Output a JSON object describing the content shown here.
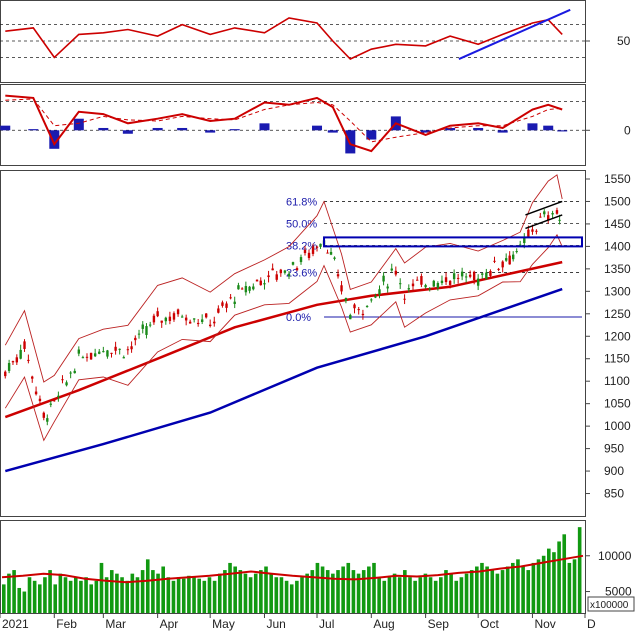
{
  "colors": {
    "up": "#1a8a1a",
    "down": "#cc0000",
    "ma_short": "#cc0000",
    "ma_long": "#0000b0",
    "bollinger": "#bb2222",
    "fib": "#1a1aaa",
    "rsi": "#cc0000",
    "rsi_trend": "#1a1ae0",
    "macd": "#cc0000",
    "histogram": "#1a1ab0",
    "volume_bar": "#119911",
    "volume_ma": "#cc0000",
    "grid": "#333333"
  },
  "chart_data": [
    {
      "type": "line",
      "panel": "rsi",
      "y_ticks": [
        "50"
      ],
      "ylim": [
        0,
        100
      ],
      "x": [
        "2021-01-04",
        "2021-01-20",
        "2021-02-01",
        "2021-02-15",
        "2021-03-01",
        "2021-03-15",
        "2021-04-01",
        "2021-04-15",
        "2021-05-01",
        "2021-05-15",
        "2021-06-01",
        "2021-06-15",
        "2021-07-01",
        "2021-07-10",
        "2021-07-20",
        "2021-08-01",
        "2021-08-15",
        "2021-09-01",
        "2021-09-15",
        "2021-10-01",
        "2021-10-15",
        "2021-11-01",
        "2021-11-10",
        "2021-11-18"
      ],
      "series": [
        {
          "values": [
            62,
            66,
            30,
            58,
            60,
            64,
            56,
            70,
            58,
            66,
            60,
            78,
            72,
            50,
            28,
            40,
            46,
            44,
            56,
            46,
            58,
            72,
            76,
            58
          ]
        }
      ],
      "trendline": {
        "x": [
          "2021-09-20",
          "2021-11-18"
        ],
        "y": [
          28,
          88
        ]
      },
      "reference_levels": [
        30,
        50,
        70
      ]
    },
    {
      "type": "line",
      "panel": "macd",
      "y_ticks": [
        "0"
      ],
      "ylim": [
        -30,
        40
      ],
      "x": [
        "2021-01-04",
        "2021-01-20",
        "2021-02-01",
        "2021-02-15",
        "2021-03-01",
        "2021-03-15",
        "2021-04-01",
        "2021-04-15",
        "2021-05-01",
        "2021-05-15",
        "2021-06-01",
        "2021-06-15",
        "2021-07-01",
        "2021-07-10",
        "2021-07-20",
        "2021-08-01",
        "2021-08-15",
        "2021-09-01",
        "2021-09-15",
        "2021-10-01",
        "2021-10-15",
        "2021-11-01",
        "2021-11-10",
        "2021-11-18"
      ],
      "series": [
        {
          "values": [
            30,
            28,
            -12,
            16,
            14,
            6,
            10,
            14,
            8,
            10,
            24,
            22,
            28,
            20,
            -12,
            -18,
            6,
            -4,
            4,
            6,
            2,
            18,
            22,
            18
          ]
        },
        {
          "values": [
            26,
            27,
            4,
            6,
            12,
            9,
            8,
            12,
            10,
            9,
            18,
            22,
            24,
            22,
            8,
            -10,
            -6,
            -2,
            2,
            4,
            4,
            12,
            18,
            19
          ]
        }
      ],
      "histogram": [
        4,
        1,
        -16,
        10,
        2,
        -3,
        2,
        2,
        -2,
        1,
        6,
        0,
        4,
        -2,
        -20,
        -8,
        12,
        -2,
        2,
        2,
        -2,
        6,
        4,
        -1
      ]
    },
    {
      "type": "candlestick",
      "panel": "price",
      "y_ticks": [
        "850",
        "900",
        "950",
        "1000",
        "1050",
        "1100",
        "1150",
        "1200",
        "1250",
        "1300",
        "1350",
        "1400",
        "1450",
        "1500",
        "1550"
      ],
      "ylim": [
        800,
        1570
      ],
      "x_ticks": [
        "2021",
        "Feb",
        "Mar",
        "Apr",
        "May",
        "Jun",
        "Jul",
        "Aug",
        "Sep",
        "Oct",
        "Nov",
        "D"
      ],
      "fibonacci": [
        {
          "label": "61.8%",
          "value": 1500
        },
        {
          "label": "50.0%",
          "value": 1451
        },
        {
          "label": "38.2%",
          "value": 1402
        },
        {
          "label": "23.6%",
          "value": 1342
        },
        {
          "label": "0.0%",
          "value": 1243
        }
      ],
      "close_path": {
        "x": [
          "2021-01-04",
          "2021-01-15",
          "2021-01-26",
          "2021-02-01",
          "2021-02-15",
          "2021-03-01",
          "2021-03-15",
          "2021-04-01",
          "2021-04-15",
          "2021-05-01",
          "2021-05-15",
          "2021-06-01",
          "2021-06-15",
          "2021-07-01",
          "2021-07-05",
          "2021-07-15",
          "2021-07-20",
          "2021-08-01",
          "2021-08-15",
          "2021-08-20",
          "2021-09-01",
          "2021-09-15",
          "2021-10-01",
          "2021-10-15",
          "2021-10-25",
          "2021-11-01",
          "2021-11-10",
          "2021-11-15",
          "2021-11-18"
        ],
        "y": [
          1120,
          1180,
          1020,
          1050,
          1150,
          1175,
          1170,
          1240,
          1250,
          1230,
          1290,
          1330,
          1350,
          1400,
          1420,
          1310,
          1250,
          1280,
          1350,
          1300,
          1320,
          1330,
          1330,
          1370,
          1390,
          1440,
          1470,
          1480,
          1440
        ]
      },
      "ma_short": {
        "x": [
          "2021-01-04",
          "2021-02-15",
          "2021-04-01",
          "2021-05-15",
          "2021-07-01",
          "2021-08-01",
          "2021-09-15",
          "2021-11-18"
        ],
        "y": [
          1020,
          1080,
          1150,
          1220,
          1270,
          1290,
          1310,
          1365
        ]
      },
      "ma_long": {
        "x": [
          "2021-01-04",
          "2021-03-01",
          "2021-05-01",
          "2021-07-01",
          "2021-09-01",
          "2021-11-18"
        ],
        "y": [
          900,
          960,
          1030,
          1130,
          1200,
          1305
        ]
      },
      "resistance_zone": [
        1400,
        1420
      ],
      "channel": {
        "x": [
          "2021-10-28",
          "2021-11-18"
        ],
        "upper": [
          1470,
          1500
        ],
        "lower": [
          1440,
          1470
        ]
      }
    },
    {
      "type": "bar",
      "panel": "volume",
      "y_ticks": [
        "5000",
        "10000"
      ],
      "unit_label": "x100000",
      "ylim": [
        2000,
        15000
      ],
      "values": [
        6000,
        7500,
        8000,
        5500,
        5000,
        7000,
        6500,
        6000,
        7000,
        8000,
        6000,
        7500,
        7000,
        6500,
        7000,
        6500,
        7000,
        6000,
        6500,
        9000,
        7000,
        8000,
        7500,
        7000,
        6500,
        7500,
        7000,
        8000,
        9500,
        8000,
        7500,
        8500,
        7000,
        6500,
        7000,
        6800,
        7200,
        7000,
        6800,
        6500,
        7000,
        6500,
        7500,
        8000,
        9000,
        8500,
        8000,
        7500,
        7000,
        7500,
        8000,
        8500,
        7500,
        7000,
        7000,
        6500,
        6000,
        6500,
        7000,
        7500,
        8000,
        9000,
        8500,
        8000,
        7500,
        8000,
        8500,
        9000,
        8000,
        7500,
        8000,
        8500,
        9000,
        7000,
        6500,
        7000,
        7500,
        7000,
        8000,
        7000,
        6500,
        7000,
        7500,
        7000,
        6500,
        7000,
        8000,
        7500,
        6500,
        7000,
        7500,
        8000,
        8500,
        9000,
        8500,
        8000,
        7500,
        8000,
        8500,
        9000,
        9500,
        8500,
        8000,
        9000,
        9500,
        10000,
        11000,
        10500,
        12000,
        13000,
        9000,
        9500,
        14000
      ],
      "ma": [
        7000,
        7200,
        7500,
        7300,
        6800,
        6500,
        6300,
        6500,
        6800,
        7000,
        7200,
        7500,
        7800,
        7500,
        7200,
        7000,
        6800,
        6700,
        6900,
        7200,
        7100,
        7300,
        7600,
        7800,
        8200,
        8500,
        9000,
        9500,
        10000
      ]
    }
  ]
}
